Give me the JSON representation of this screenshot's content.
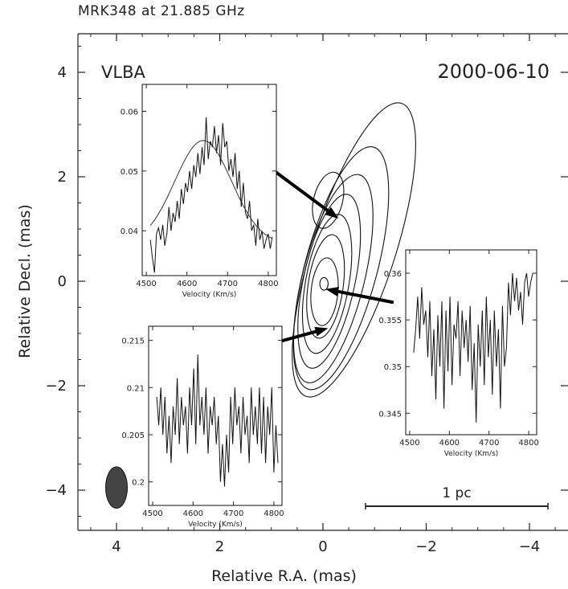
{
  "chart_data": {
    "type": "contour",
    "title": "MRK348 at 21.885 GHz",
    "instrument": "VLBA",
    "date": "2000-06-10",
    "xlabel": "Relative R.A. (mas)",
    "ylabel": "Relative Decl. (mas)",
    "xlim": [
      4.8,
      -4.8
    ],
    "ylim": [
      -4.8,
      4.8
    ],
    "xticks": [
      4,
      2,
      0,
      -2,
      -4
    ],
    "yticks": [
      4,
      2,
      0,
      -2,
      -4
    ],
    "xtick_labels": [
      "4",
      "2",
      "0",
      "−2",
      "−4"
    ],
    "ytick_labels": [
      "4",
      "2",
      "0",
      "−2",
      "−4"
    ],
    "scalebar_label": "1 pc",
    "beam": {
      "x": 4.0,
      "y": -3.95,
      "width_mas": 0.4,
      "height_mas": 0.72
    },
    "contours": [
      {
        "cx": -0.6,
        "cy": 0.6,
        "rx": 0.8,
        "ry": 2.95,
        "angle": 18
      },
      {
        "cx": -0.35,
        "cy": 0.25,
        "rx": 0.7,
        "ry": 2.4,
        "angle": 15
      },
      {
        "cx": -0.2,
        "cy": 0.05,
        "rx": 0.6,
        "ry": 2.05,
        "angle": 14
      },
      {
        "cx": -0.12,
        "cy": 0.0,
        "rx": 0.5,
        "ry": 1.7,
        "angle": 12
      },
      {
        "cx": -0.08,
        "cy": -0.05,
        "rx": 0.42,
        "ry": 1.35,
        "angle": 10
      },
      {
        "cx": -0.05,
        "cy": -0.1,
        "rx": 0.34,
        "ry": 1.0,
        "angle": 8
      },
      {
        "cx": -0.03,
        "cy": -0.2,
        "rx": 0.26,
        "ry": 0.65,
        "angle": 5
      },
      {
        "cx": -0.1,
        "cy": 1.55,
        "rx": 0.28,
        "ry": 0.55,
        "angle": 14
      },
      {
        "cx": -0.02,
        "cy": -0.05,
        "rx": 0.08,
        "ry": 0.12,
        "angle": 0
      }
    ],
    "insets": [
      {
        "id": "north",
        "xlabel": "Velocity (Km/s)",
        "xlim": [
          4490,
          4820
        ],
        "ylim": [
          0.0325,
          0.0645
        ],
        "xticks": [
          4500,
          4600,
          4700,
          4800
        ],
        "yticks": [
          0.04,
          0.05,
          0.06
        ],
        "ytick_labels": [
          "0.04",
          "0.05",
          "0.06"
        ],
        "spectrum": [
          0.0385,
          0.0355,
          0.033,
          0.0395,
          0.0405,
          0.0385,
          0.041,
          0.0375,
          0.0395,
          0.044,
          0.04,
          0.043,
          0.0415,
          0.045,
          0.042,
          0.047,
          0.0445,
          0.048,
          0.0465,
          0.05,
          0.047,
          0.051,
          0.049,
          0.053,
          0.0495,
          0.054,
          0.051,
          0.059,
          0.052,
          0.055,
          0.054,
          0.0575,
          0.053,
          0.056,
          0.051,
          0.058,
          0.054,
          0.055,
          0.05,
          0.052,
          0.049,
          0.053,
          0.047,
          0.05,
          0.044,
          0.048,
          0.043,
          0.042,
          0.045,
          0.04,
          0.041,
          0.0375,
          0.042,
          0.0385,
          0.04,
          0.037,
          0.0385,
          0.0395,
          0.037,
          0.039
        ],
        "fit": {
          "amp": 0.0173,
          "mu": 4640,
          "sigma": 70,
          "base": 0.0378
        },
        "arrow_to": [
          -0.3,
          1.2
        ]
      },
      {
        "id": "core",
        "xlabel": "Velocity (Km/s)",
        "xlim": [
          4490,
          4820
        ],
        "ylim": [
          0.3427,
          0.3625
        ],
        "xticks": [
          4500,
          4600,
          4700,
          4800
        ],
        "yticks": [
          0.345,
          0.35,
          0.355,
          0.36
        ],
        "ytick_labels": [
          "0.345",
          "0.35",
          "0.355",
          "0.36"
        ],
        "spectrum": [
          0.3515,
          0.354,
          0.3575,
          0.353,
          0.3585,
          0.3545,
          0.356,
          0.351,
          0.357,
          0.349,
          0.354,
          0.3465,
          0.3555,
          0.35,
          0.357,
          0.3455,
          0.356,
          0.3495,
          0.3575,
          0.348,
          0.3545,
          0.353,
          0.357,
          0.349,
          0.356,
          0.352,
          0.355,
          0.3505,
          0.3565,
          0.3475,
          0.3525,
          0.344,
          0.3545,
          0.35,
          0.356,
          0.348,
          0.3575,
          0.351,
          0.355,
          0.347,
          0.356,
          0.35,
          0.354,
          0.3455,
          0.3565,
          0.35,
          0.352,
          0.359,
          0.3555,
          0.36,
          0.357,
          0.3595,
          0.356,
          0.358,
          0.3545,
          0.359,
          0.36,
          0.3575,
          0.359,
          0.36
        ],
        "arrow_to": [
          -0.05,
          -0.15
        ]
      },
      {
        "id": "south",
        "xlabel": "Velocity (Km/s)",
        "xlim": [
          4490,
          4820
        ],
        "ylim": [
          0.1975,
          0.2165
        ],
        "xticks": [
          4500,
          4600,
          4700,
          4800
        ],
        "yticks": [
          0.2,
          0.205,
          0.21,
          0.215
        ],
        "ytick_labels": [
          "0.2",
          "0.205",
          "0.21",
          "0.215"
        ],
        "spectrum": [
          0.209,
          0.206,
          0.21,
          0.205,
          0.209,
          0.203,
          0.207,
          0.202,
          0.208,
          0.205,
          0.211,
          0.204,
          0.209,
          0.206,
          0.208,
          0.203,
          0.21,
          0.206,
          0.212,
          0.204,
          0.2135,
          0.206,
          0.209,
          0.205,
          0.21,
          0.203,
          0.208,
          0.206,
          0.209,
          0.204,
          0.207,
          0.2,
          0.204,
          0.1995,
          0.205,
          0.201,
          0.209,
          0.204,
          0.21,
          0.206,
          0.208,
          0.203,
          0.209,
          0.205,
          0.207,
          0.202,
          0.21,
          0.205,
          0.208,
          0.204,
          0.21,
          0.203,
          0.209,
          0.202,
          0.208,
          0.205,
          0.21,
          0.201,
          0.206,
          0.202
        ],
        "arrow_to": [
          -0.1,
          -0.9
        ]
      }
    ]
  }
}
